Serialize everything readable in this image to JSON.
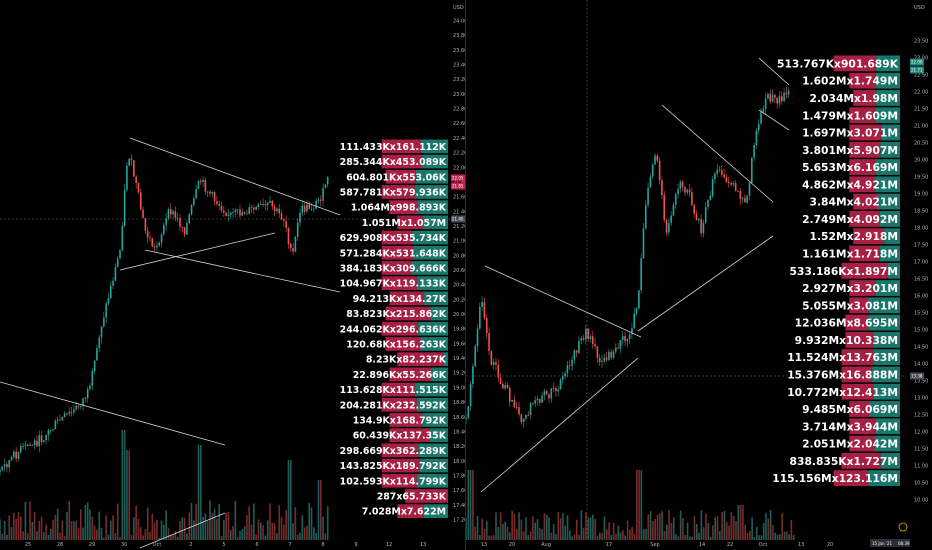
{
  "left_chart": {
    "price_axis": {
      "unit": "USD",
      "ticks": [
        "24.00",
        "23.80",
        "23.60",
        "23.40",
        "23.20",
        "23.00",
        "22.80",
        "22.60",
        "22.40",
        "22.20",
        "22.00",
        "21.80",
        "21.60",
        "21.40",
        "21.20",
        "21.00",
        "20.80",
        "20.60",
        "20.40",
        "20.20",
        "20.00",
        "19.80",
        "19.60",
        "19.40",
        "19.20",
        "19.00",
        "18.80",
        "18.60",
        "18.40",
        "18.20",
        "18.00",
        "17.80",
        "17.60",
        "17.40",
        "17.20"
      ]
    },
    "time_axis": {
      "labels": [
        "25",
        "28",
        "29",
        "30",
        "Oct",
        "2",
        "5",
        "6",
        "7",
        "8",
        "9",
        "12",
        "13"
      ]
    },
    "price_badges": [
      "22.05",
      "21.85",
      "21.40"
    ],
    "volume_profile": [
      {
        "label": "111.433Kx161.112K",
        "buy": 0.41,
        "sell": 0.59
      },
      {
        "label": "285.344Kx453.089K",
        "buy": 0.39,
        "sell": 0.61
      },
      {
        "label": "604.801Kx553.06K",
        "buy": 0.52,
        "sell": 0.48
      },
      {
        "label": "587.781Kx579.936K",
        "buy": 0.5,
        "sell": 0.5
      },
      {
        "label": "1.064Mx998.893K",
        "buy": 0.52,
        "sell": 0.48
      },
      {
        "label": "1.051Mx1.057M",
        "buy": 0.5,
        "sell": 0.5
      },
      {
        "label": "629.908Kx535.734K",
        "buy": 0.54,
        "sell": 0.46
      },
      {
        "label": "571.284Kx531.648K",
        "buy": 0.52,
        "sell": 0.48
      },
      {
        "label": "384.183Kx309.666K",
        "buy": 0.55,
        "sell": 0.45
      },
      {
        "label": "104.967Kx119.133K",
        "buy": 0.47,
        "sell": 0.53
      },
      {
        "label": "94.213Kx134.27K",
        "buy": 0.41,
        "sell": 0.59
      },
      {
        "label": "83.823Kx215.862K",
        "buy": 0.28,
        "sell": 0.72
      },
      {
        "label": "244.062Kx296.636K",
        "buy": 0.45,
        "sell": 0.55
      },
      {
        "label": "120.68Kx156.263K",
        "buy": 0.44,
        "sell": 0.56
      },
      {
        "label": "8.23Kx82.237K",
        "buy": 0.09,
        "sell": 0.91
      },
      {
        "label": "22.896Kx55.266K",
        "buy": 0.29,
        "sell": 0.71
      },
      {
        "label": "113.628Kx111.515K",
        "buy": 0.5,
        "sell": 0.5
      },
      {
        "label": "204.281Kx232.592K",
        "buy": 0.47,
        "sell": 0.53
      },
      {
        "label": "134.9Kx168.792K",
        "buy": 0.44,
        "sell": 0.56
      },
      {
        "label": "60.439Kx137.35K",
        "buy": 0.31,
        "sell": 0.69
      },
      {
        "label": "298.669Kx362.289K",
        "buy": 0.45,
        "sell": 0.55
      },
      {
        "label": "143.825Kx189.792K",
        "buy": 0.43,
        "sell": 0.57
      },
      {
        "label": "102.593Kx114.799K",
        "buy": 0.47,
        "sell": 0.53
      },
      {
        "label": "287x65.733K",
        "buy": 0.01,
        "sell": 0.99
      },
      {
        "label": "7.028Mx7.622M",
        "buy": 0.48,
        "sell": 0.52
      }
    ]
  },
  "right_chart": {
    "price_axis": {
      "unit": "USD",
      "ticks": [
        "23.50",
        "23.00",
        "22.50",
        "22.00",
        "21.50",
        "21.00",
        "20.50",
        "20.00",
        "19.50",
        "19.00",
        "18.50",
        "18.00",
        "17.50",
        "17.00",
        "16.50",
        "16.00",
        "15.50",
        "15.00",
        "14.50",
        "14.00",
        "13.50",
        "13.00",
        "12.50",
        "12.00",
        "11.50",
        "11.00",
        "10.50",
        "10.00"
      ]
    },
    "time_axis": {
      "labels": [
        "13",
        "20",
        "Aug",
        "17",
        "Sep",
        "14",
        "22",
        "Oct",
        "13",
        "20"
      ],
      "date_badge": "15 Jan '21",
      "date_badge_time": "08:39"
    },
    "price_badges": [
      "22.00",
      "21.71",
      "13.38"
    ],
    "volume_profile": [
      {
        "label": "513.767Kx901.689K",
        "buy": 0.36,
        "sell": 0.64
      },
      {
        "label": "1.602Mx1.749M",
        "buy": 0.48,
        "sell": 0.52
      },
      {
        "label": "2.034Mx1.98M",
        "buy": 0.51,
        "sell": 0.49
      },
      {
        "label": "1.479Mx1.609M",
        "buy": 0.48,
        "sell": 0.52
      },
      {
        "label": "1.697Mx3.071M",
        "buy": 0.36,
        "sell": 0.64
      },
      {
        "label": "3.801Mx5.907M",
        "buy": 0.39,
        "sell": 0.61
      },
      {
        "label": "5.653Mx6.169M",
        "buy": 0.48,
        "sell": 0.52
      },
      {
        "label": "4.862Mx4.921M",
        "buy": 0.5,
        "sell": 0.5
      },
      {
        "label": "3.84Mx4.021M",
        "buy": 0.49,
        "sell": 0.51
      },
      {
        "label": "2.749Mx4.092M",
        "buy": 0.4,
        "sell": 0.6
      },
      {
        "label": "1.52Mx2.918M",
        "buy": 0.34,
        "sell": 0.66
      },
      {
        "label": "1.161Mx1.718M",
        "buy": 0.4,
        "sell": 0.6
      },
      {
        "label": "533.186Kx1.897M",
        "buy": 0.22,
        "sell": 0.78
      },
      {
        "label": "2.927Mx3.201M",
        "buy": 0.48,
        "sell": 0.52
      },
      {
        "label": "5.055Mx3.081M",
        "buy": 0.62,
        "sell": 0.38
      },
      {
        "label": "12.036Mx8.695M",
        "buy": 0.58,
        "sell": 0.42
      },
      {
        "label": "9.932Mx10.338M",
        "buy": 0.49,
        "sell": 0.51
      },
      {
        "label": "11.524Mx13.763M",
        "buy": 0.46,
        "sell": 0.54
      },
      {
        "label": "15.376Mx16.888M",
        "buy": 0.48,
        "sell": 0.52
      },
      {
        "label": "10.772Mx12.413M",
        "buy": 0.46,
        "sell": 0.54
      },
      {
        "label": "9.485Mx6.069M",
        "buy": 0.61,
        "sell": 0.39
      },
      {
        "label": "3.714Mx3.944M",
        "buy": 0.48,
        "sell": 0.52
      },
      {
        "label": "2.051Mx2.042M",
        "buy": 0.5,
        "sell": 0.5
      },
      {
        "label": "838.835Kx1.727M",
        "buy": 0.33,
        "sell": 0.67
      },
      {
        "label": "115.156Mx123.116M",
        "buy": 0.48,
        "sell": 0.52
      }
    ]
  },
  "colors": {
    "background": "#000000",
    "up": "#26a69a",
    "down": "#ef5350",
    "vp_buy": "#1e8a7e",
    "vp_sell": "#c4244f",
    "trendline": "#d1d4dc",
    "grid": "#1c1f26",
    "crosshair": "#5d606b"
  }
}
